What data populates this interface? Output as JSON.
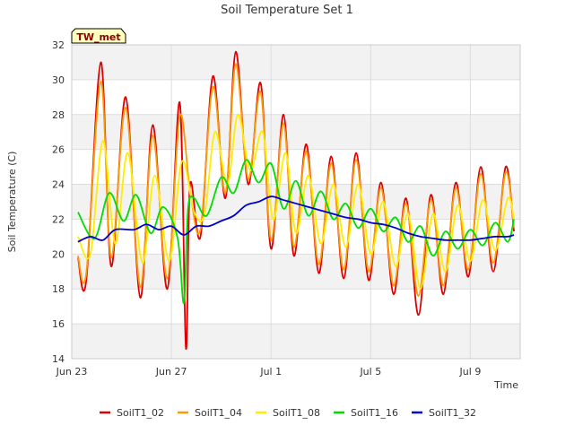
{
  "chart_data": {
    "type": "line",
    "title": "Soil Temperature Set 1",
    "xlabel": "Time",
    "ylabel": "Soil Temperature (C)",
    "badge": "TW_met",
    "ylim": [
      14,
      32
    ],
    "yticks": [
      14,
      16,
      18,
      20,
      22,
      24,
      26,
      28,
      30,
      32
    ],
    "xlim": [
      "2023-06-23",
      "2023-07-11"
    ],
    "xticks": [
      {
        "date": "2023-06-23",
        "label": "Jun 23"
      },
      {
        "date": "2023-06-27",
        "label": "Jun 27"
      },
      {
        "date": "2023-07-01",
        "label": "Jul 1"
      },
      {
        "date": "2023-07-05",
        "label": "Jul 5"
      },
      {
        "date": "2023-07-09",
        "label": "Jul 9"
      }
    ],
    "grid": true,
    "legend_position": "bottom",
    "series": [
      {
        "name": "SoilT1_02",
        "color": "#dd0000",
        "points": [
          [
            "2023-06-23 06:00",
            19.8
          ],
          [
            "2023-06-23 14:00",
            18.5
          ],
          [
            "2023-06-24 04:00",
            31.0
          ],
          [
            "2023-06-24 14:00",
            19.3
          ],
          [
            "2023-06-25 04:00",
            29.0
          ],
          [
            "2023-06-25 18:00",
            17.5
          ],
          [
            "2023-06-26 06:00",
            27.4
          ],
          [
            "2023-06-26 20:00",
            18.0
          ],
          [
            "2023-06-27 08:00",
            28.7
          ],
          [
            "2023-06-27 14:00",
            14.6
          ],
          [
            "2023-06-27 18:00",
            24.0
          ],
          [
            "2023-06-28 04:00",
            21.0
          ],
          [
            "2023-06-28 16:00",
            30.2
          ],
          [
            "2023-06-29 04:00",
            23.2
          ],
          [
            "2023-06-29 14:00",
            31.6
          ],
          [
            "2023-06-30 02:00",
            24.0
          ],
          [
            "2023-06-30 14:00",
            29.8
          ],
          [
            "2023-07-01 00:00",
            20.3
          ],
          [
            "2023-07-01 12:00",
            28.0
          ],
          [
            "2023-07-01 22:00",
            19.9
          ],
          [
            "2023-07-02 10:00",
            26.3
          ],
          [
            "2023-07-02 22:00",
            18.9
          ],
          [
            "2023-07-03 10:00",
            25.6
          ],
          [
            "2023-07-03 22:00",
            18.6
          ],
          [
            "2023-07-04 10:00",
            25.8
          ],
          [
            "2023-07-04 22:00",
            18.5
          ],
          [
            "2023-07-05 10:00",
            24.1
          ],
          [
            "2023-07-05 22:00",
            17.7
          ],
          [
            "2023-07-06 10:00",
            23.2
          ],
          [
            "2023-07-06 22:00",
            16.5
          ],
          [
            "2023-07-07 10:00",
            23.4
          ],
          [
            "2023-07-07 22:00",
            17.7
          ],
          [
            "2023-07-08 10:00",
            24.1
          ],
          [
            "2023-07-08 22:00",
            18.7
          ],
          [
            "2023-07-09 10:00",
            25.0
          ],
          [
            "2023-07-09 22:00",
            19.0
          ],
          [
            "2023-07-10 10:00",
            25.0
          ],
          [
            "2023-07-10 18:00",
            21.3
          ]
        ]
      },
      {
        "name": "SoilT1_04",
        "color": "#ff9900",
        "points": [
          [
            "2023-06-23 06:00",
            19.9
          ],
          [
            "2023-06-23 14:00",
            18.9
          ],
          [
            "2023-06-24 04:00",
            29.9
          ],
          [
            "2023-06-24 14:00",
            19.8
          ],
          [
            "2023-06-25 04:00",
            28.4
          ],
          [
            "2023-06-25 18:00",
            18.1
          ],
          [
            "2023-06-26 06:00",
            26.8
          ],
          [
            "2023-06-26 20:00",
            18.6
          ],
          [
            "2023-06-27 08:00",
            27.9
          ],
          [
            "2023-06-27 18:00",
            23.6
          ],
          [
            "2023-06-28 04:00",
            21.4
          ],
          [
            "2023-06-28 16:00",
            29.6
          ],
          [
            "2023-06-29 04:00",
            23.5
          ],
          [
            "2023-06-29 14:00",
            30.9
          ],
          [
            "2023-06-30 02:00",
            24.3
          ],
          [
            "2023-06-30 14:00",
            29.3
          ],
          [
            "2023-07-01 00:00",
            20.8
          ],
          [
            "2023-07-01 12:00",
            27.5
          ],
          [
            "2023-07-01 22:00",
            20.4
          ],
          [
            "2023-07-02 10:00",
            25.9
          ],
          [
            "2023-07-02 22:00",
            19.4
          ],
          [
            "2023-07-03 10:00",
            25.2
          ],
          [
            "2023-07-03 22:00",
            19.1
          ],
          [
            "2023-07-04 10:00",
            25.4
          ],
          [
            "2023-07-04 22:00",
            19.0
          ],
          [
            "2023-07-05 10:00",
            23.8
          ],
          [
            "2023-07-05 22:00",
            18.2
          ],
          [
            "2023-07-06 10:00",
            22.9
          ],
          [
            "2023-07-06 22:00",
            17.6
          ],
          [
            "2023-07-07 10:00",
            23.1
          ],
          [
            "2023-07-07 22:00",
            18.2
          ],
          [
            "2023-07-08 10:00",
            23.8
          ],
          [
            "2023-07-08 22:00",
            19.1
          ],
          [
            "2023-07-09 10:00",
            24.6
          ],
          [
            "2023-07-09 22:00",
            19.5
          ],
          [
            "2023-07-10 10:00",
            24.7
          ],
          [
            "2023-07-10 18:00",
            21.5
          ]
        ]
      },
      {
        "name": "SoilT1_08",
        "color": "#ffee00",
        "points": [
          [
            "2023-06-23 06:00",
            21.0
          ],
          [
            "2023-06-23 18:00",
            20.0
          ],
          [
            "2023-06-24 06:00",
            26.5
          ],
          [
            "2023-06-24 18:00",
            20.6
          ],
          [
            "2023-06-25 06:00",
            25.8
          ],
          [
            "2023-06-25 20:00",
            19.5
          ],
          [
            "2023-06-26 08:00",
            24.5
          ],
          [
            "2023-06-26 22:00",
            19.6
          ],
          [
            "2023-06-27 10:00",
            25.3
          ],
          [
            "2023-06-27 22:00",
            22.4
          ],
          [
            "2023-06-28 08:00",
            22.3
          ],
          [
            "2023-06-28 18:00",
            27.0
          ],
          [
            "2023-06-29 06:00",
            24.0
          ],
          [
            "2023-06-29 16:00",
            28.0
          ],
          [
            "2023-06-30 04:00",
            24.8
          ],
          [
            "2023-06-30 16:00",
            27.0
          ],
          [
            "2023-07-01 02:00",
            22.0
          ],
          [
            "2023-07-01 14:00",
            25.8
          ],
          [
            "2023-07-02 00:00",
            21.2
          ],
          [
            "2023-07-02 12:00",
            24.5
          ],
          [
            "2023-07-03 00:00",
            20.6
          ],
          [
            "2023-07-03 12:00",
            24.0
          ],
          [
            "2023-07-04 00:00",
            20.4
          ],
          [
            "2023-07-04 12:00",
            24.0
          ],
          [
            "2023-07-05 00:00",
            20.0
          ],
          [
            "2023-07-05 12:00",
            23.0
          ],
          [
            "2023-07-06 00:00",
            19.3
          ],
          [
            "2023-07-06 12:00",
            22.3
          ],
          [
            "2023-07-07 00:00",
            18.0
          ],
          [
            "2023-07-07 12:00",
            22.3
          ],
          [
            "2023-07-08 00:00",
            19.0
          ],
          [
            "2023-07-08 12:00",
            22.8
          ],
          [
            "2023-07-09 00:00",
            19.6
          ],
          [
            "2023-07-09 12:00",
            23.1
          ],
          [
            "2023-07-10 00:00",
            20.2
          ],
          [
            "2023-07-10 12:00",
            23.2
          ],
          [
            "2023-07-10 18:00",
            22.0
          ]
        ]
      },
      {
        "name": "SoilT1_16",
        "color": "#00dd00",
        "points": [
          [
            "2023-06-23 06:00",
            22.4
          ],
          [
            "2023-06-23 22:00",
            20.9
          ],
          [
            "2023-06-24 12:00",
            23.5
          ],
          [
            "2023-06-25 02:00",
            21.9
          ],
          [
            "2023-06-25 14:00",
            23.4
          ],
          [
            "2023-06-26 04:00",
            21.2
          ],
          [
            "2023-06-26 16:00",
            22.7
          ],
          [
            "2023-06-27 06:00",
            20.9
          ],
          [
            "2023-06-27 12:00",
            17.2
          ],
          [
            "2023-06-27 16:00",
            22.6
          ],
          [
            "2023-06-27 22:00",
            23.2
          ],
          [
            "2023-06-28 10:00",
            22.2
          ],
          [
            "2023-06-29 00:00",
            24.4
          ],
          [
            "2023-06-29 12:00",
            23.5
          ],
          [
            "2023-06-30 00:00",
            25.4
          ],
          [
            "2023-06-30 12:00",
            24.1
          ],
          [
            "2023-07-01 00:00",
            25.2
          ],
          [
            "2023-07-01 12:00",
            22.6
          ],
          [
            "2023-07-02 00:00",
            24.2
          ],
          [
            "2023-07-02 12:00",
            22.2
          ],
          [
            "2023-07-03 00:00",
            23.6
          ],
          [
            "2023-07-03 12:00",
            22.0
          ],
          [
            "2023-07-04 00:00",
            22.9
          ],
          [
            "2023-07-04 12:00",
            21.5
          ],
          [
            "2023-07-05 00:00",
            22.6
          ],
          [
            "2023-07-05 12:00",
            21.3
          ],
          [
            "2023-07-06 00:00",
            22.1
          ],
          [
            "2023-07-06 12:00",
            20.7
          ],
          [
            "2023-07-07 00:00",
            21.6
          ],
          [
            "2023-07-07 12:00",
            19.9
          ],
          [
            "2023-07-08 00:00",
            21.3
          ],
          [
            "2023-07-08 12:00",
            20.3
          ],
          [
            "2023-07-09 00:00",
            21.4
          ],
          [
            "2023-07-09 12:00",
            20.5
          ],
          [
            "2023-07-10 00:00",
            21.8
          ],
          [
            "2023-07-10 12:00",
            20.7
          ],
          [
            "2023-07-10 18:00",
            22.0
          ]
        ]
      },
      {
        "name": "SoilT1_32",
        "color": "#0000cc",
        "points": [
          [
            "2023-06-23 06:00",
            20.7
          ],
          [
            "2023-06-23 18:00",
            21.0
          ],
          [
            "2023-06-24 06:00",
            20.8
          ],
          [
            "2023-06-24 18:00",
            21.4
          ],
          [
            "2023-06-25 12:00",
            21.4
          ],
          [
            "2023-06-26 00:00",
            21.7
          ],
          [
            "2023-06-26 12:00",
            21.4
          ],
          [
            "2023-06-27 00:00",
            21.6
          ],
          [
            "2023-06-27 12:00",
            21.1
          ],
          [
            "2023-06-28 00:00",
            21.6
          ],
          [
            "2023-06-28 12:00",
            21.6
          ],
          [
            "2023-06-29 00:00",
            21.9
          ],
          [
            "2023-06-29 12:00",
            22.2
          ],
          [
            "2023-06-30 00:00",
            22.8
          ],
          [
            "2023-06-30 12:00",
            23.0
          ],
          [
            "2023-07-01 00:00",
            23.3
          ],
          [
            "2023-07-01 12:00",
            23.1
          ],
          [
            "2023-07-02 00:00",
            22.9
          ],
          [
            "2023-07-02 12:00",
            22.7
          ],
          [
            "2023-07-03 00:00",
            22.5
          ],
          [
            "2023-07-03 12:00",
            22.3
          ],
          [
            "2023-07-04 00:00",
            22.1
          ],
          [
            "2023-07-04 12:00",
            22.0
          ],
          [
            "2023-07-05 00:00",
            21.8
          ],
          [
            "2023-07-05 12:00",
            21.7
          ],
          [
            "2023-07-06 00:00",
            21.5
          ],
          [
            "2023-07-06 12:00",
            21.2
          ],
          [
            "2023-07-07 00:00",
            21.0
          ],
          [
            "2023-07-07 12:00",
            20.9
          ],
          [
            "2023-07-08 00:00",
            20.8
          ],
          [
            "2023-07-08 12:00",
            20.8
          ],
          [
            "2023-07-09 00:00",
            20.8
          ],
          [
            "2023-07-09 12:00",
            20.9
          ],
          [
            "2023-07-10 00:00",
            21.0
          ],
          [
            "2023-07-10 12:00",
            21.0
          ],
          [
            "2023-07-10 18:00",
            21.1
          ]
        ]
      }
    ]
  }
}
